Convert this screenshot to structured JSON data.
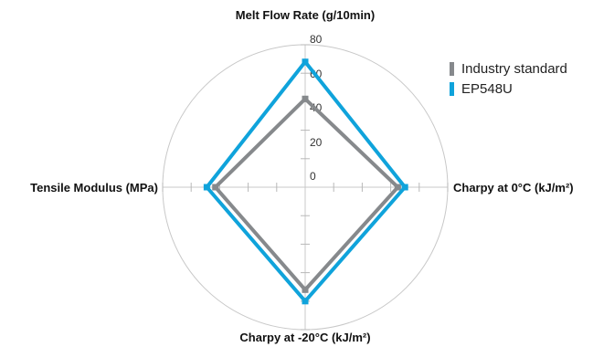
{
  "chart_data": {
    "type": "radar",
    "axes": [
      "Melt Flow Rate (g/10min)",
      "Charpy at 0°C (kJ/m²)",
      "Charpy at -20°C (kJ/m²)",
      "Tensile Modulus (MPa)"
    ],
    "radial_ticks": [
      "0",
      "20",
      "40",
      "60",
      "80"
    ],
    "rlim": [
      -20,
      80
    ],
    "grid": "outer circle with tick marks on axes",
    "legend_position": "top-right",
    "series": [
      {
        "name": "Industry standard",
        "color": "#86898c",
        "values": [
          42,
          45,
          52,
          43
        ]
      },
      {
        "name": "EP548U",
        "color": "#0fa3db",
        "values": [
          68,
          50,
          60,
          49
        ]
      }
    ]
  }
}
